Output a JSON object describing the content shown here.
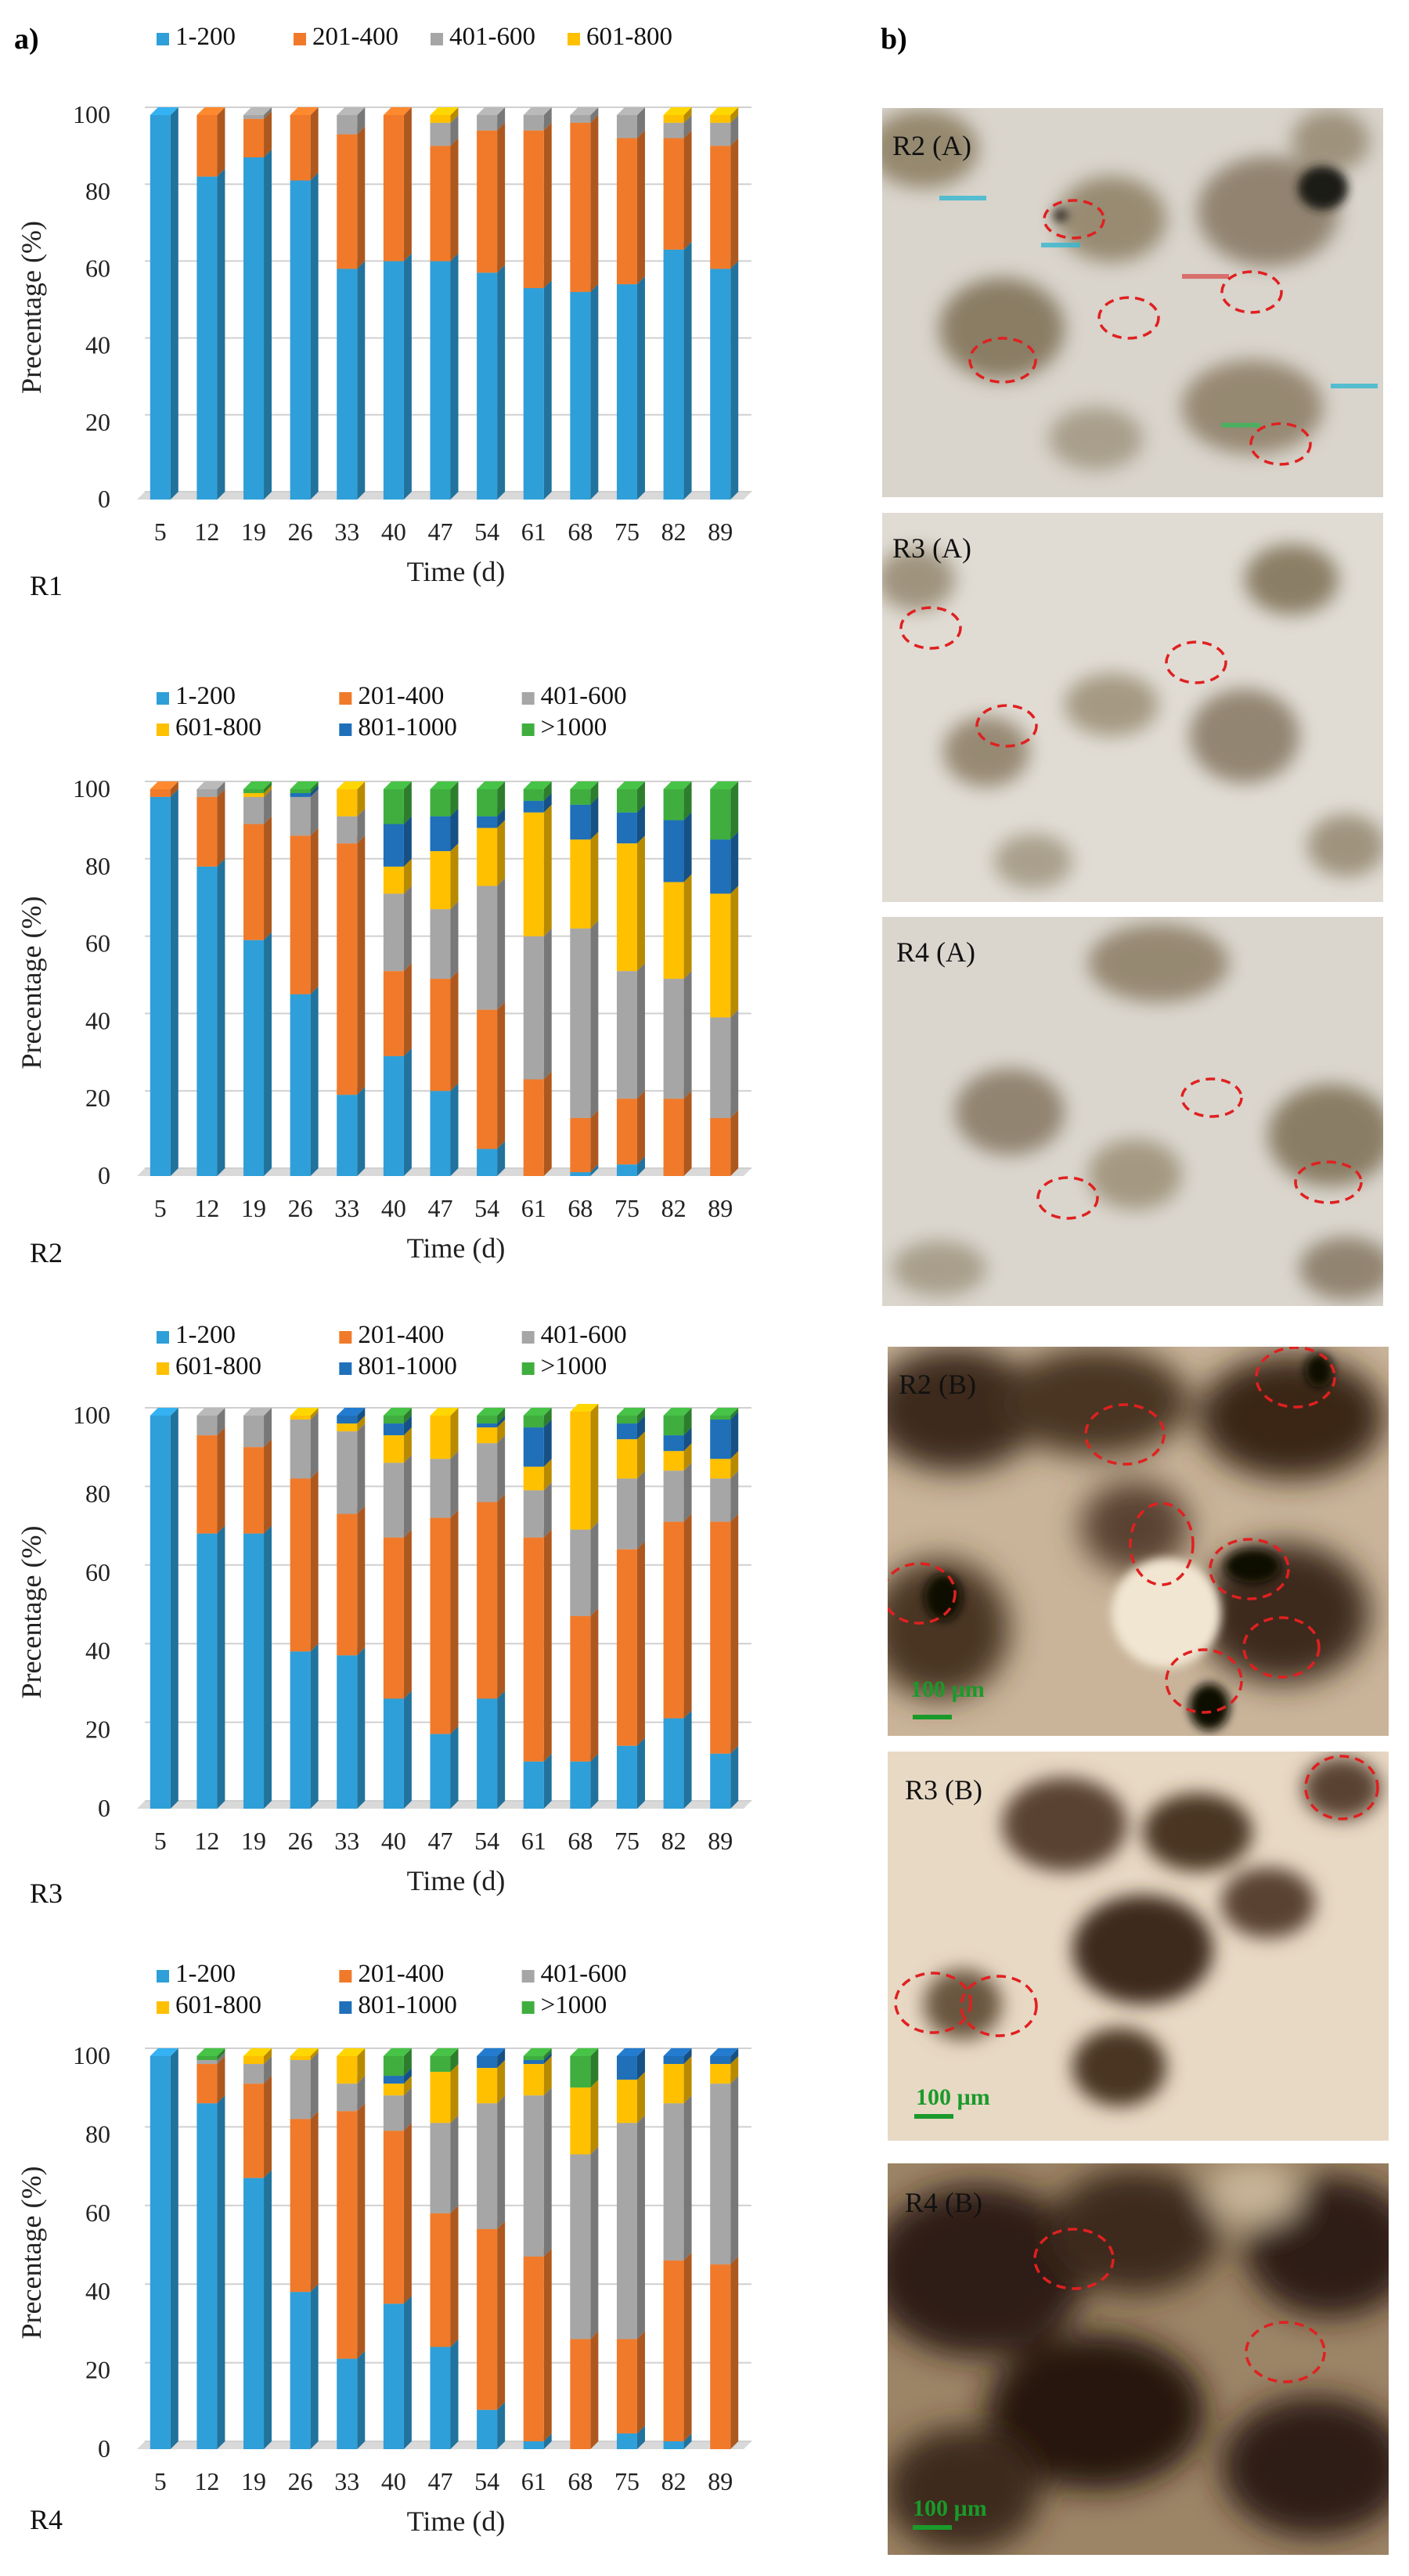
{
  "panel_a_label": "a)",
  "panel_b_label": "b)",
  "chart_data": [
    {
      "type": "bar",
      "stacked": true,
      "label": "R1",
      "xlabel": "Time (d)",
      "ylabel": "Precentage (%)",
      "ylim": [
        0,
        100
      ],
      "yticks": [
        0,
        20,
        40,
        60,
        80,
        100
      ],
      "grid": true,
      "legend": "top",
      "categories": [
        "5",
        "12",
        "19",
        "26",
        "33",
        "40",
        "47",
        "54",
        "61",
        "68",
        "75",
        "82",
        "89"
      ],
      "series": [
        {
          "name": "1-200",
          "color": "#2e9fd8",
          "values": [
            100,
            84,
            89,
            83,
            60,
            62,
            62,
            59,
            55,
            54,
            56,
            65,
            60
          ]
        },
        {
          "name": "201-400",
          "color": "#f07a2a",
          "values": [
            0,
            16,
            10,
            17,
            35,
            38,
            30,
            37,
            41,
            44,
            38,
            29,
            32
          ]
        },
        {
          "name": "401-600",
          "color": "#a6a6a6",
          "values": [
            0,
            0,
            1,
            0,
            5,
            0,
            6,
            4,
            4,
            2,
            6,
            4,
            6
          ]
        },
        {
          "name": "601-800",
          "color": "#ffc000",
          "values": [
            0,
            0,
            0,
            0,
            0,
            0,
            2,
            0,
            0,
            0,
            0,
            2,
            2
          ]
        }
      ]
    },
    {
      "type": "bar",
      "stacked": true,
      "label": "R2",
      "xlabel": "Time (d)",
      "ylabel": "Precentage (%)",
      "ylim": [
        0,
        100
      ],
      "yticks": [
        0,
        20,
        40,
        60,
        80,
        100
      ],
      "grid": true,
      "legend": "top",
      "categories": [
        "5",
        "12",
        "19",
        "26",
        "33",
        "40",
        "47",
        "54",
        "61",
        "68",
        "75",
        "82",
        "89"
      ],
      "series": [
        {
          "name": "1-200",
          "color": "#2e9fd8",
          "values": [
            98,
            80,
            61,
            47,
            21,
            31,
            22,
            7,
            0,
            1,
            3,
            0,
            0
          ]
        },
        {
          "name": "201-400",
          "color": "#f07a2a",
          "values": [
            2,
            18,
            30,
            41,
            65,
            22,
            29,
            36,
            25,
            14,
            17,
            20,
            15
          ]
        },
        {
          "name": "401-600",
          "color": "#a6a6a6",
          "values": [
            0,
            2,
            7,
            10,
            7,
            20,
            18,
            32,
            37,
            49,
            33,
            31,
            26
          ]
        },
        {
          "name": "601-800",
          "color": "#ffc000",
          "values": [
            0,
            0,
            1,
            0,
            7,
            7,
            15,
            15,
            32,
            23,
            33,
            25,
            32
          ]
        },
        {
          "name": "801-1000",
          "color": "#1f6fb9",
          "values": [
            0,
            0,
            0,
            1,
            0,
            11,
            9,
            3,
            3,
            9,
            8,
            16,
            14
          ]
        },
        {
          "name": ">1000",
          "color": "#3fae3f",
          "values": [
            0,
            0,
            1,
            1,
            0,
            9,
            7,
            7,
            3,
            4,
            6,
            8,
            13
          ]
        }
      ]
    },
    {
      "type": "bar",
      "stacked": true,
      "label": "R3",
      "xlabel": "Time (d)",
      "ylabel": "Precentage (%)",
      "ylim": [
        0,
        100
      ],
      "yticks": [
        0,
        20,
        40,
        60,
        80,
        100
      ],
      "grid": true,
      "legend": "top",
      "categories": [
        "5",
        "12",
        "19",
        "26",
        "33",
        "40",
        "47",
        "54",
        "61",
        "68",
        "75",
        "82",
        "89"
      ],
      "series": [
        {
          "name": "1-200",
          "color": "#2e9fd8",
          "values": [
            100,
            70,
            70,
            40,
            39,
            28,
            19,
            28,
            12,
            12,
            16,
            23,
            14
          ]
        },
        {
          "name": "201-400",
          "color": "#f07a2a",
          "values": [
            0,
            25,
            22,
            44,
            36,
            41,
            55,
            50,
            57,
            37,
            50,
            50,
            59
          ]
        },
        {
          "name": "401-600",
          "color": "#a6a6a6",
          "values": [
            0,
            5,
            8,
            15,
            21,
            19,
            15,
            15,
            12,
            22,
            18,
            13,
            11
          ]
        },
        {
          "name": "601-800",
          "color": "#ffc000",
          "values": [
            0,
            0,
            0,
            1,
            2,
            7,
            11,
            4,
            6,
            30,
            10,
            5,
            5
          ]
        },
        {
          "name": "801-1000",
          "color": "#1f6fb9",
          "values": [
            0,
            0,
            0,
            0,
            2,
            3,
            0,
            1,
            10,
            0,
            4,
            4,
            10
          ]
        },
        {
          "name": ">1000",
          "color": "#3fae3f",
          "values": [
            0,
            0,
            0,
            0,
            0,
            2,
            0,
            2,
            3,
            0,
            2,
            5,
            1
          ]
        }
      ]
    },
    {
      "type": "bar",
      "stacked": true,
      "label": "R4",
      "xlabel": "Time (d)",
      "ylabel": "Precentage (%)",
      "ylim": [
        0,
        100
      ],
      "yticks": [
        0,
        20,
        40,
        60,
        80,
        100
      ],
      "grid": true,
      "legend": "top",
      "categories": [
        "5",
        "12",
        "19",
        "26",
        "33",
        "40",
        "47",
        "54",
        "61",
        "68",
        "75",
        "82",
        "89"
      ],
      "series": [
        {
          "name": "1-200",
          "color": "#2e9fd8",
          "values": [
            100,
            88,
            69,
            40,
            23,
            37,
            26,
            10,
            2,
            0,
            4,
            2,
            0
          ]
        },
        {
          "name": "201-400",
          "color": "#f07a2a",
          "values": [
            0,
            10,
            24,
            44,
            63,
            44,
            34,
            46,
            47,
            28,
            24,
            46,
            47
          ]
        },
        {
          "name": "401-600",
          "color": "#a6a6a6",
          "values": [
            0,
            1,
            5,
            15,
            7,
            9,
            23,
            32,
            41,
            47,
            55,
            40,
            46
          ]
        },
        {
          "name": "601-800",
          "color": "#ffc000",
          "values": [
            0,
            0,
            2,
            1,
            7,
            3,
            13,
            9,
            8,
            17,
            11,
            10,
            5
          ]
        },
        {
          "name": "801-1000",
          "color": "#1f6fb9",
          "values": [
            0,
            0,
            0,
            0,
            0,
            2,
            0,
            3,
            1,
            0,
            6,
            2,
            2
          ]
        },
        {
          "name": ">1000",
          "color": "#3fae3f",
          "values": [
            0,
            1,
            0,
            0,
            0,
            5,
            4,
            0,
            1,
            8,
            0,
            0,
            0
          ]
        }
      ]
    }
  ],
  "photos": [
    {
      "label": "R2 (A)",
      "tone": "light",
      "scale_bar": ""
    },
    {
      "label": "R3 (A)",
      "tone": "light",
      "scale_bar": ""
    },
    {
      "label": "R4 (A)",
      "tone": "light",
      "scale_bar": ""
    },
    {
      "label": "R2 (B)",
      "tone": "dark",
      "scale_bar": "100 µm"
    },
    {
      "label": "R3 (B)",
      "tone": "medium",
      "scale_bar": "100 µm"
    },
    {
      "label": "R4 (B)",
      "tone": "dark",
      "scale_bar": "100 µm"
    }
  ]
}
